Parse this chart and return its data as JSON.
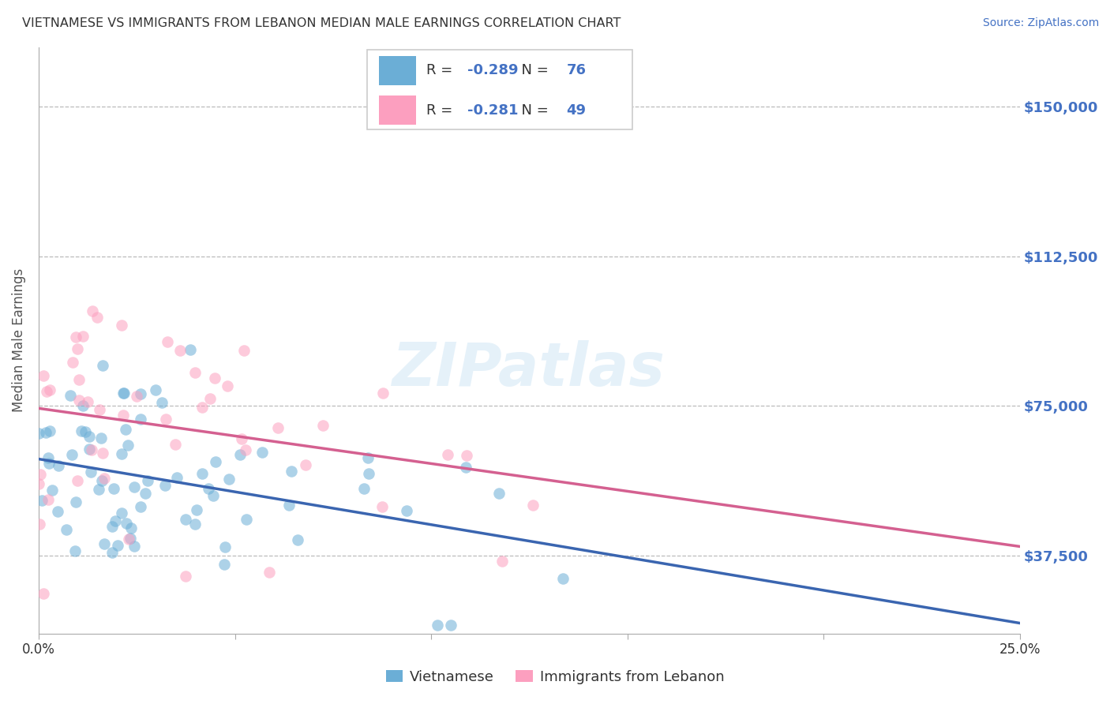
{
  "title": "VIETNAMESE VS IMMIGRANTS FROM LEBANON MEDIAN MALE EARNINGS CORRELATION CHART",
  "source": "Source: ZipAtlas.com",
  "ylabel": "Median Male Earnings",
  "watermark": "ZIPatlas",
  "xlim": [
    0.0,
    0.25
  ],
  "ylim": [
    18000,
    165000
  ],
  "xticks": [
    0.0,
    0.05,
    0.1,
    0.15,
    0.2,
    0.25
  ],
  "xticklabels": [
    "0.0%",
    "",
    "",
    "",
    "",
    "25.0%"
  ],
  "ytick_positions": [
    37500,
    75000,
    112500,
    150000
  ],
  "ytick_labels": [
    "$37,500",
    "$75,000",
    "$112,500",
    "$150,000"
  ],
  "color_blue": "#6baed6",
  "color_pink": "#fc9fbf",
  "legend_label1": "Vietnamese",
  "legend_label2": "Immigrants from Lebanon",
  "R1": -0.289,
  "N1": 76,
  "R2": -0.281,
  "N2": 49,
  "background_color": "#ffffff",
  "grid_color": "#bbbbbb",
  "title_color": "#333333",
  "axis_label_color": "#555555",
  "ytick_color": "#4472c4",
  "seed1": 7,
  "seed2": 13,
  "scatter_alpha": 0.55,
  "scatter_size": 110,
  "trend_color_blue": "#3a65b0",
  "trend_color_pink": "#d46090"
}
